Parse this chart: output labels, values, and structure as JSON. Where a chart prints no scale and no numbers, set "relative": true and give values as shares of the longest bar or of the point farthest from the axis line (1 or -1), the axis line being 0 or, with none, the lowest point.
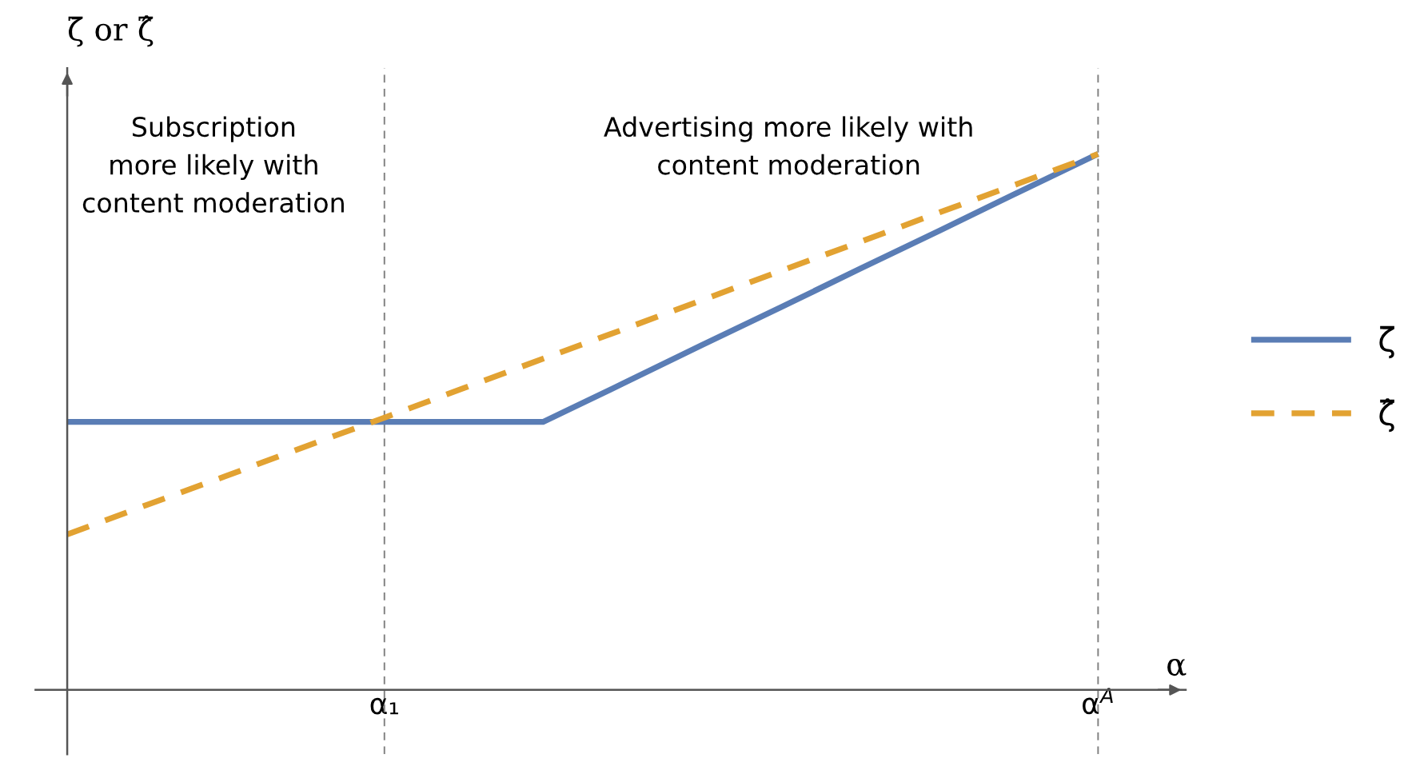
{
  "chart_data": {
    "type": "line",
    "relative": true,
    "xlabel": "α",
    "ylabel": "ζ̄ or ζ̂",
    "categories": [
      null,
      null,
      null,
      null,
      "α₁",
      null,
      null,
      null,
      null,
      null,
      null,
      null,
      null,
      "α$^{A}$"
    ],
    "ref_lines": [
      {
        "axis": "x",
        "value": "α₁",
        "line_style": "dashed",
        "color": "#808080"
      },
      {
        "axis": "x",
        "value": "α$^{A}$",
        "line_style": "dashed",
        "color": "#808080"
      }
    ],
    "series": [
      {
        "name": "ζ̄",
        "color": "#5a7db5",
        "line_style": "solid",
        "values": [
          0.5,
          0.5,
          0.5,
          0.5,
          0.5,
          0.5,
          0.5,
          0.571,
          0.643,
          0.714,
          0.786,
          0.857,
          0.929,
          1
        ]
      },
      {
        "name": "ζ̂",
        "color": "#e2a232",
        "line_style": "dashed",
        "values": [
          0.29,
          0.345,
          0.399,
          0.454,
          0.508,
          0.563,
          0.618,
          0.672,
          0.727,
          0.782,
          0.836,
          0.891,
          0.945,
          1
        ]
      }
    ],
    "annotations": [
      "Subscription\nmore likely with\ncontent moderation",
      "Advertising more likely with\ncontent moderation"
    ],
    "legend": "right",
    "grid": false
  }
}
